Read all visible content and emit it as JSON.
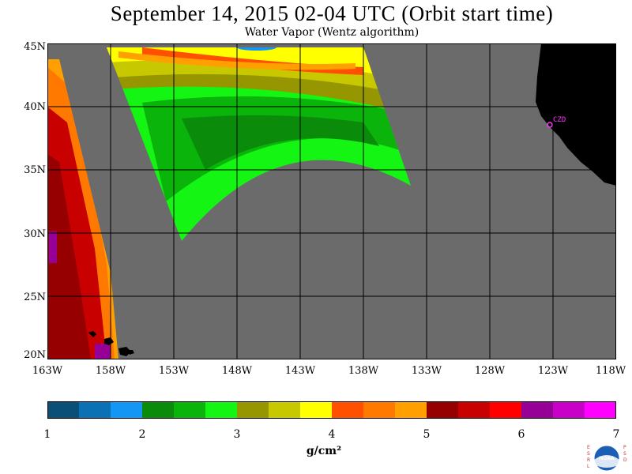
{
  "title": "September 14, 2015  02-04 UTC  (Orbit start time)",
  "subtitle": "Water Vapor (Wentz algorithm)",
  "map": {
    "lat_labels": [
      "45N",
      "40N",
      "35N",
      "30N",
      "25N",
      "20N"
    ],
    "lon_labels": [
      "163W",
      "158W",
      "153W",
      "148W",
      "143W",
      "138W",
      "133W",
      "128W",
      "123W",
      "118W"
    ],
    "lat_range": [
      20,
      45
    ],
    "lon_range": [
      -163,
      -118
    ],
    "station_label": "CZD",
    "colors": {
      "no_data": "#6b6b6b",
      "land": "#000000",
      "grid": "#000000",
      "station": "#ff33ff"
    }
  },
  "colorbar": {
    "ticks": [
      "1",
      "2",
      "3",
      "4",
      "5",
      "6",
      "7"
    ],
    "units": "g/cm²",
    "range": [
      1,
      7
    ],
    "colors": [
      "#0a4f78",
      "#0a72b4",
      "#1496f5",
      "#0a8c0a",
      "#0ab40a",
      "#14f514",
      "#969600",
      "#c8c800",
      "#ffff00",
      "#ff5000",
      "#ff7800",
      "#ffa000",
      "#960000",
      "#c80000",
      "#ff0000",
      "#960096",
      "#c800c8",
      "#ff00ff"
    ]
  },
  "logo": {
    "left_letters": "ESRL",
    "right_letters": "PSD",
    "center_text": "NOAA"
  }
}
